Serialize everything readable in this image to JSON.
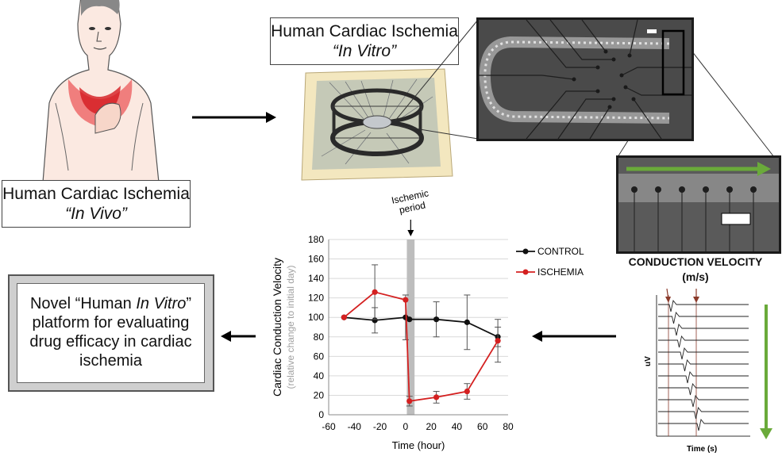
{
  "invivo": {
    "line1": "Human Cardiac Ischemia",
    "line2": "“In Vivo”"
  },
  "invitro": {
    "line1": "Human Cardiac Ischemia",
    "line2": "“In Vitro”"
  },
  "novel": {
    "line1": "Novel “Human ",
    "line1_it": "In Vitro",
    "line1_end": "”",
    "line2": "platform for evaluating",
    "line3": "drug efficacy in cardiac",
    "line4": "ischemia"
  },
  "conduction": {
    "line1": "CONDUCTION VELOCITY",
    "line2": "(m/s)"
  },
  "traces": {
    "ylabel": "uV",
    "xlabel": "Time (s)"
  },
  "colors": {
    "control": "#111111",
    "ischemia": "#d42020",
    "green_arrow": "#6aaa3a",
    "ischemic_band": "#bdbdbd",
    "trace_marker": "#8b3a2a"
  },
  "chart_data": {
    "type": "line",
    "annotation": "Ischemic period",
    "xlabel": "Time (hour)",
    "ylabel": "Cardiac Conduction Velocity",
    "ylabel2": "(relative change to initial day)",
    "xlim": [
      -60,
      80
    ],
    "ylim": [
      0,
      180
    ],
    "xticks": [
      -60,
      -40,
      -20,
      0,
      20,
      40,
      60,
      80
    ],
    "yticks": [
      0,
      20,
      40,
      60,
      80,
      100,
      120,
      140,
      160,
      180
    ],
    "legend_position": "right",
    "series": [
      {
        "name": "CONTROL",
        "color": "#111111",
        "x": [
          -48,
          -24,
          0,
          3,
          24,
          48,
          72
        ],
        "y": [
          100,
          97,
          100,
          98,
          98,
          95,
          80
        ],
        "err": [
          0,
          13,
          23,
          0,
          18,
          28,
          10
        ]
      },
      {
        "name": "ISCHEMIA",
        "color": "#d42020",
        "x": [
          -48,
          -24,
          0,
          3,
          24,
          48,
          72
        ],
        "y": [
          100,
          126,
          118,
          14,
          18,
          24,
          76
        ],
        "err": [
          0,
          28,
          0,
          5,
          6,
          8,
          22
        ]
      }
    ],
    "shade": {
      "x_from": 1,
      "x_to": 7
    }
  }
}
